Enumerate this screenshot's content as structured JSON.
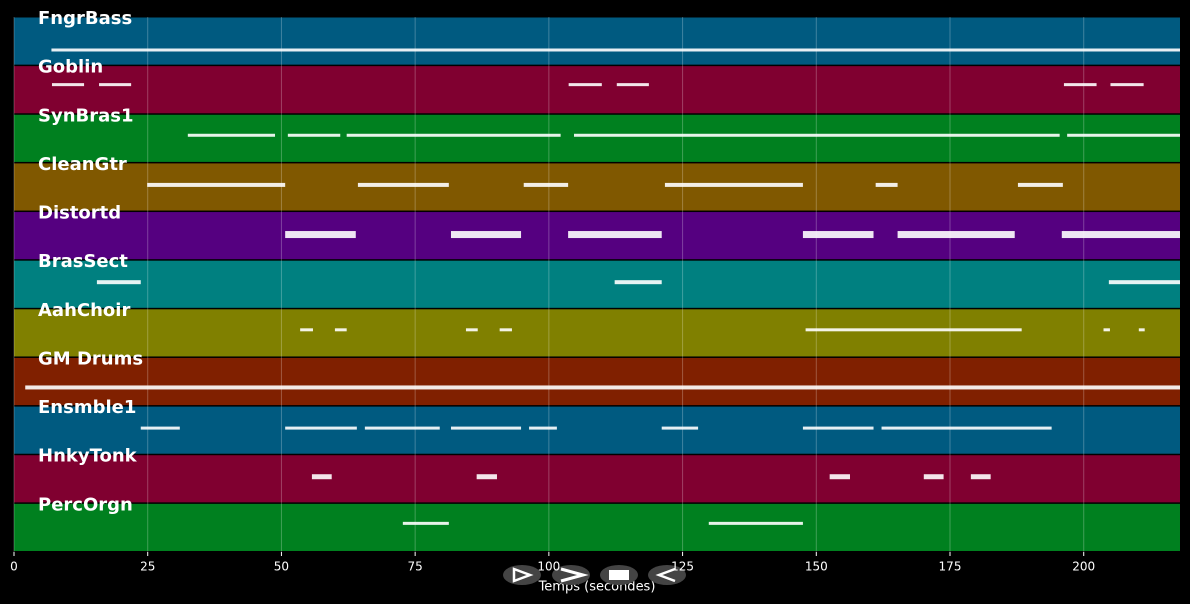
{
  "chart_data": {
    "type": "pianoroll",
    "xlabel": "Temps (secondes)",
    "xlim": [
      0,
      218
    ],
    "xticks": [
      0,
      25,
      50,
      75,
      100,
      125,
      150,
      175,
      200
    ],
    "grid": true,
    "tracks": [
      {
        "name": "FngrBass",
        "color": "#005a80",
        "segments": [
          [
            7,
            218
          ]
        ]
      },
      {
        "name": "Goblin",
        "color": "#800030",
        "segments": [
          [
            7.1,
            13.1
          ],
          [
            15.9,
            21.9
          ],
          [
            103.7,
            109.9
          ],
          [
            112.7,
            118.7
          ],
          [
            196.3,
            202.4
          ],
          [
            205,
            211.2
          ]
        ]
      },
      {
        "name": "SynBras1",
        "color": "#00801f",
        "segments": [
          [
            32.5,
            48.8
          ],
          [
            51.2,
            61
          ],
          [
            62.2,
            102.2
          ],
          [
            104.7,
            195.5
          ],
          [
            196.9,
            218
          ]
        ]
      },
      {
        "name": "CleanGtr",
        "color": "#805800",
        "segments": [
          [
            24.9,
            50.7
          ],
          [
            64.3,
            81.3
          ],
          [
            95.3,
            103.6
          ],
          [
            121.7,
            147.5
          ],
          [
            161.1,
            165.2
          ],
          [
            187.7,
            196.1
          ]
        ]
      },
      {
        "name": "Distortd",
        "color": "#550080",
        "segments": [
          [
            50.7,
            63.9
          ],
          [
            81.7,
            94.8
          ],
          [
            103.6,
            121.1
          ],
          [
            147.5,
            160.7
          ],
          [
            165.2,
            187.1
          ],
          [
            195.9,
            218
          ]
        ]
      },
      {
        "name": "BrasSect",
        "color": "#008080",
        "segments": [
          [
            15.5,
            23.7
          ],
          [
            112.3,
            121.1
          ],
          [
            204.7,
            218
          ]
        ]
      },
      {
        "name": "AahChoir",
        "color": "#808000",
        "segments": [
          [
            53.5,
            55.9
          ],
          [
            60,
            62.2
          ],
          [
            84.5,
            86.7
          ],
          [
            90.8,
            93.1
          ],
          [
            148,
            188.4
          ],
          [
            203.7,
            204.9
          ],
          [
            210.3,
            211.4
          ]
        ]
      },
      {
        "name": "GM Drums",
        "color": "#802000",
        "segments": [
          [
            2.1,
            218
          ]
        ]
      },
      {
        "name": "Ensmble1",
        "color": "#005a80",
        "segments": [
          [
            23.7,
            31
          ],
          [
            50.7,
            64.1
          ],
          [
            65.6,
            79.6
          ],
          [
            81.7,
            94.8
          ],
          [
            96.3,
            101.5
          ],
          [
            121.1,
            127.9
          ],
          [
            147.5,
            160.7
          ],
          [
            162.2,
            194
          ]
        ]
      },
      {
        "name": "HnkyTonk",
        "color": "#800030",
        "segments": [
          [
            55.7,
            59.4
          ],
          [
            86.5,
            90.3
          ],
          [
            152.5,
            156.3
          ],
          [
            170.1,
            173.8
          ],
          [
            178.9,
            182.6
          ]
        ]
      },
      {
        "name": "PercOrgn",
        "color": "#00801f",
        "segments": [
          [
            72.7,
            81.3
          ],
          [
            129.9,
            147.5
          ]
        ]
      }
    ]
  }
}
